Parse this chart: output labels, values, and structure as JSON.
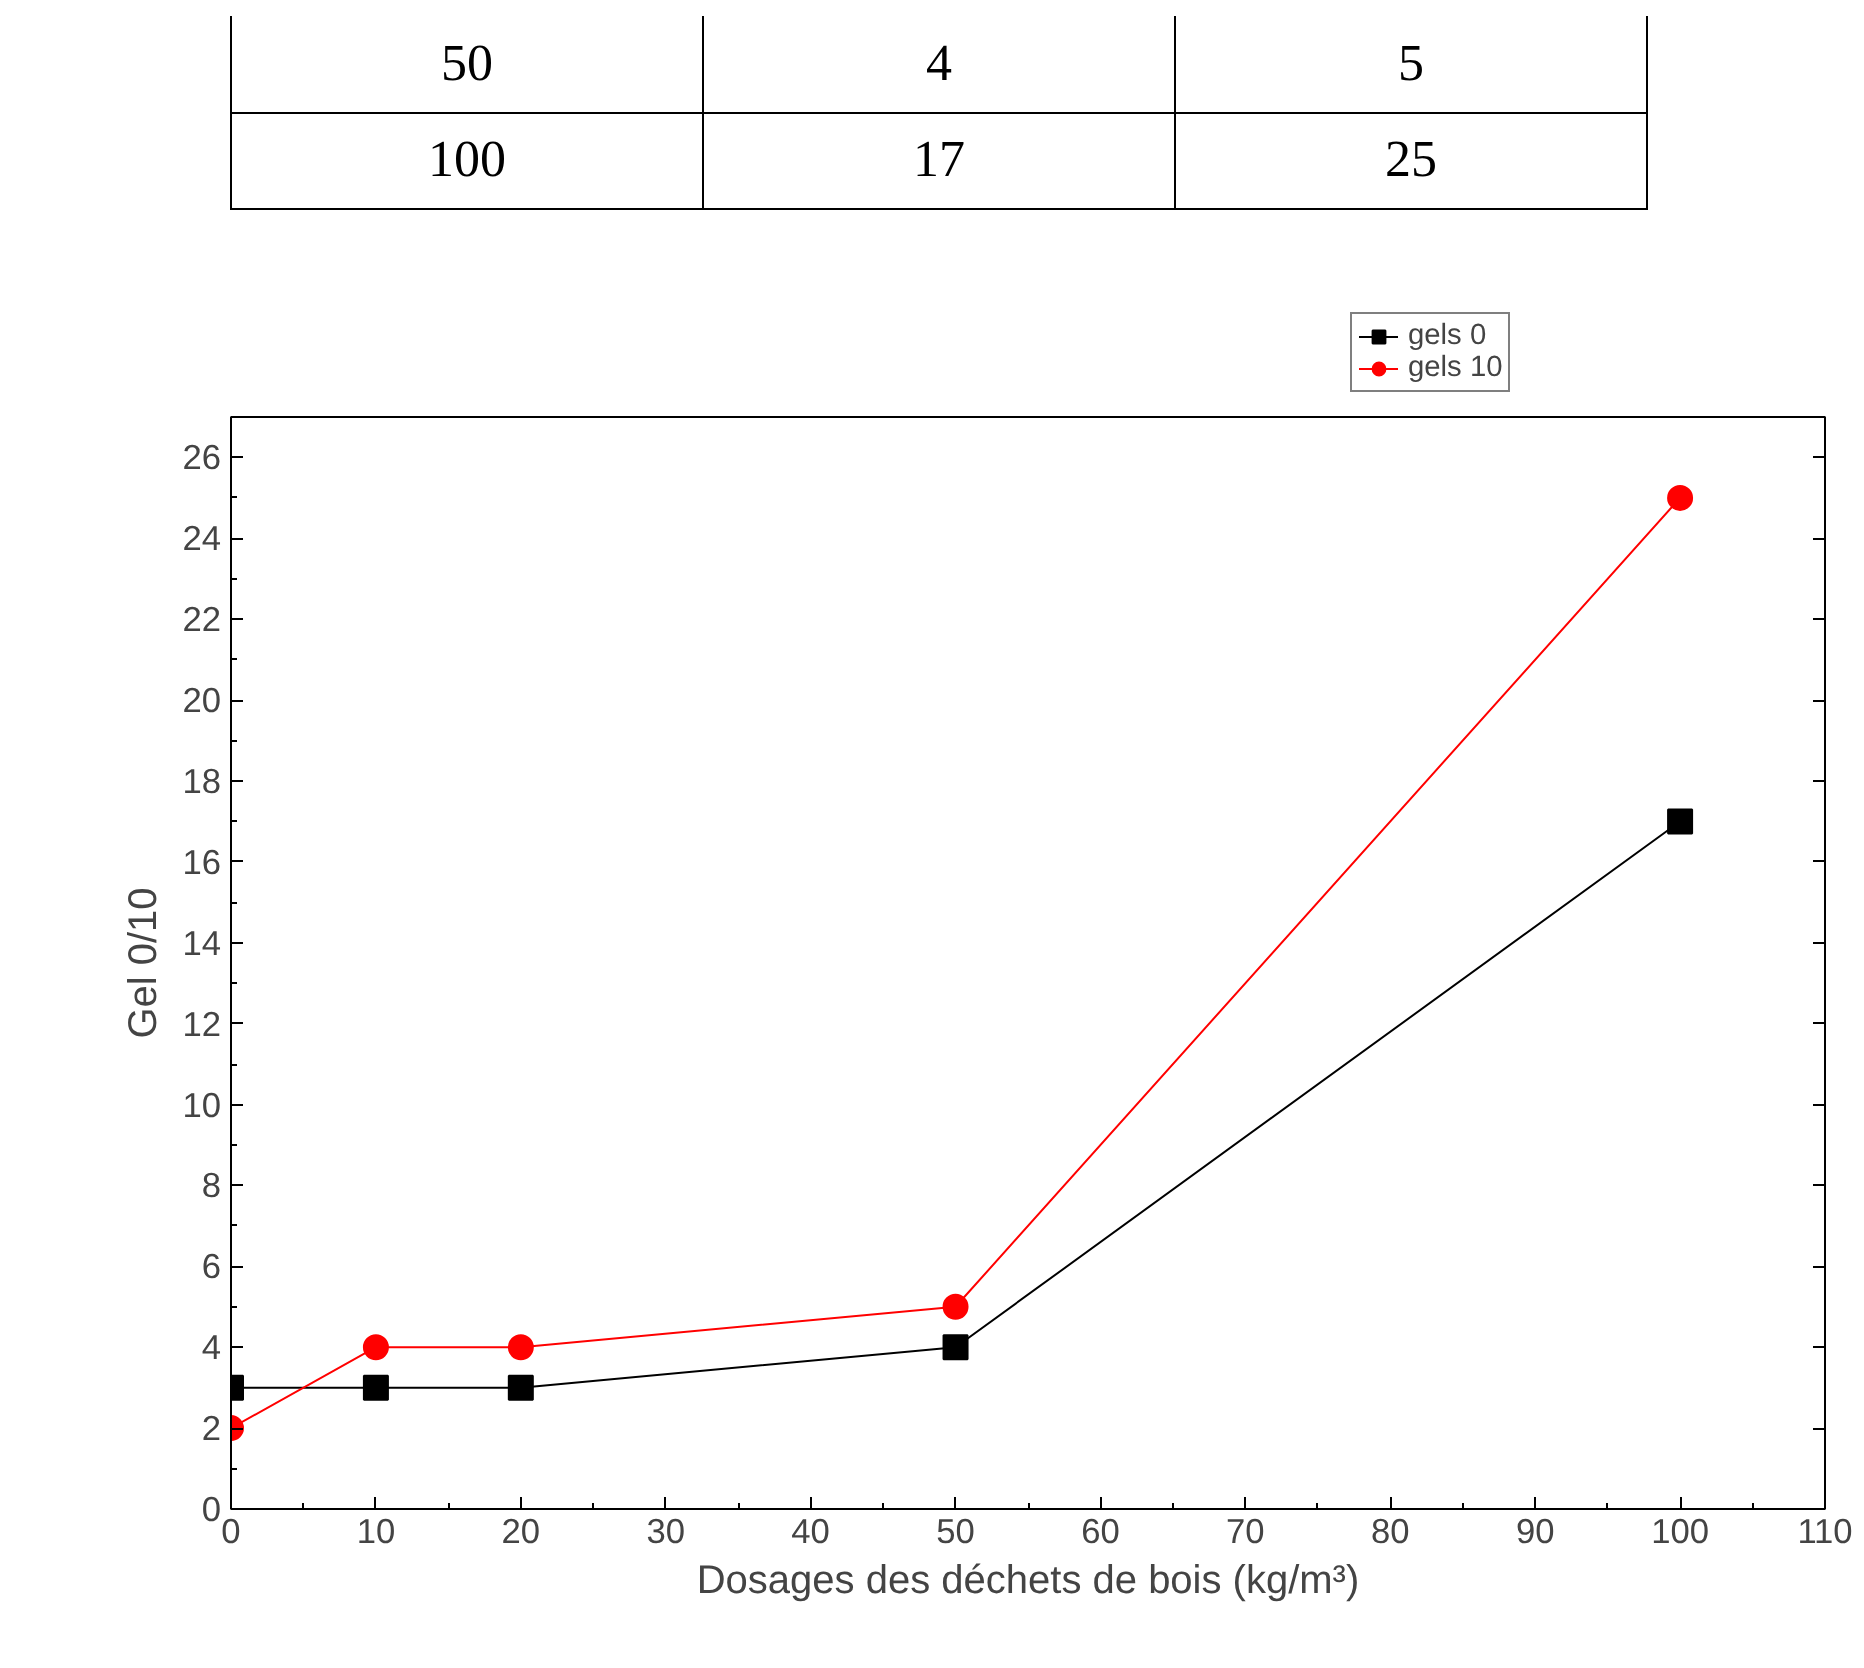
{
  "chart_data": {
    "type": "line",
    "xlabel": "Dosages des déchets de bois (kg/m³)",
    "ylabel": "Gel 0/10",
    "annotations": [
      "50",
      "4",
      "5",
      "100",
      "17",
      "25"
    ],
    "x": [
      0,
      10,
      20,
      50,
      100
    ],
    "series": [
      {
        "name": "gels 0",
        "color": "#000000",
        "marker": "square",
        "values": [
          3,
          3,
          3,
          4,
          17
        ]
      },
      {
        "name": "gels 10",
        "color": "#ff0000",
        "marker": "circle",
        "values": [
          2,
          4,
          4,
          5,
          25
        ]
      }
    ],
    "xlim": [
      0,
      110
    ],
    "xticks": [
      0,
      10,
      20,
      30,
      40,
      50,
      60,
      70,
      80,
      90,
      100,
      110
    ],
    "ylim": [
      0,
      27
    ],
    "yticks": [
      0,
      2,
      4,
      6,
      8,
      10,
      12,
      14,
      16,
      18,
      20,
      22,
      24,
      26
    ],
    "grid": false,
    "legend": "top right",
    "line_style": "solid"
  }
}
